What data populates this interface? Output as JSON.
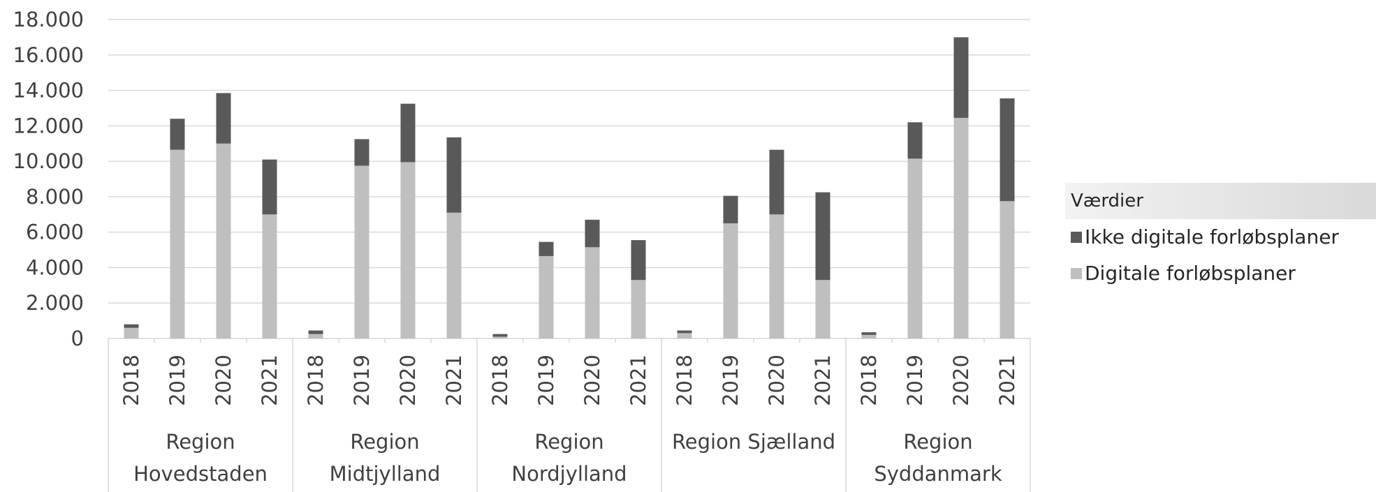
{
  "chart_data": {
    "type": "bar",
    "stacked": true,
    "y_axis": {
      "ticks": [
        "0",
        "2.000",
        "4.000",
        "6.000",
        "8.000",
        "10.000",
        "12.000",
        "14.000",
        "16.000",
        "18.000"
      ],
      "ylim": [
        0,
        18000
      ],
      "gridlines": true
    },
    "groups": [
      {
        "label_lines": [
          "Region",
          "Hovedstaden"
        ],
        "categories": [
          "2018",
          "2019",
          "2020",
          "2021"
        ]
      },
      {
        "label_lines": [
          "Region",
          "Midtjylland"
        ],
        "categories": [
          "2018",
          "2019",
          "2020",
          "2021"
        ]
      },
      {
        "label_lines": [
          "Region",
          "Nordjylland"
        ],
        "categories": [
          "2018",
          "2019",
          "2020",
          "2021"
        ]
      },
      {
        "label_lines": [
          "Region Sjælland"
        ],
        "categories": [
          "2018",
          "2019",
          "2020",
          "2021"
        ]
      },
      {
        "label_lines": [
          "Region",
          "Syddanmark"
        ],
        "categories": [
          "2018",
          "2019",
          "2020",
          "2021"
        ]
      }
    ],
    "series": [
      {
        "name": "Digitale forløbsplaner",
        "color": "#bfbfbf",
        "values": [
          600,
          10650,
          11000,
          7000,
          250,
          9750,
          9950,
          7100,
          100,
          4650,
          5150,
          3300,
          300,
          6500,
          7000,
          3300,
          200,
          10150,
          12450,
          7750
        ]
      },
      {
        "name": "Ikke digitale forløbsplaner",
        "color": "#595959",
        "values": [
          200,
          1750,
          2850,
          3100,
          200,
          1500,
          3300,
          4250,
          150,
          800,
          1550,
          2250,
          150,
          1550,
          3650,
          4950,
          150,
          2050,
          4550,
          5800
        ]
      }
    ],
    "legend": {
      "title": "Værdier",
      "position": "right",
      "items": [
        "Ikke digitale forløbsplaner",
        "Digitale forløbsplaner"
      ]
    }
  }
}
